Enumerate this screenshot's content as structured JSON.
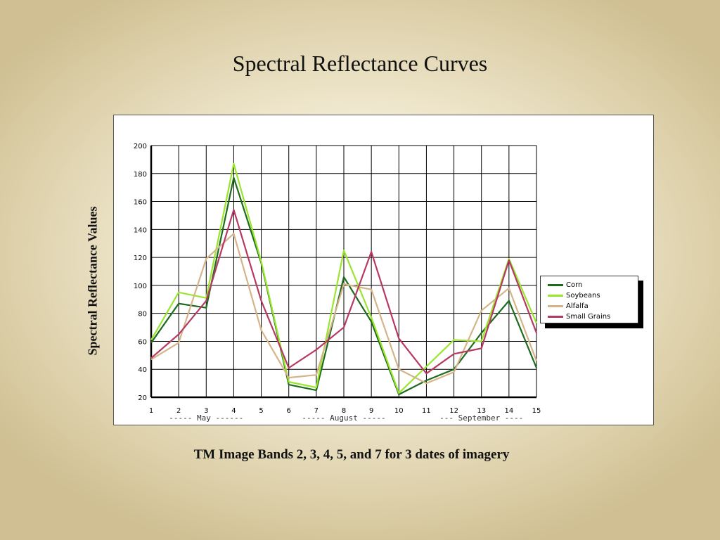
{
  "slide": {
    "title": "Spectral Reflectance Curves",
    "caption": "TM Image Bands 2, 3, 4, 5, and 7 for 3 dates of imagery"
  },
  "chart_data": {
    "type": "line",
    "title": "Spectral Reflectance Curves",
    "ylabel": "Spectral Reflectance Values",
    "xlabel": "",
    "x": [
      1,
      2,
      3,
      4,
      5,
      6,
      7,
      8,
      9,
      10,
      11,
      12,
      13,
      14,
      15
    ],
    "x_ticks": [
      "1",
      "2",
      "3",
      "4",
      "5",
      "6",
      "7",
      "8",
      "9",
      "10",
      "11",
      "12",
      "13",
      "14",
      "15"
    ],
    "y_ticks": [
      "20",
      "40",
      "60",
      "80",
      "100",
      "120",
      "140",
      "160",
      "180",
      "200"
    ],
    "xlim": [
      1,
      15
    ],
    "ylim": [
      20,
      200
    ],
    "grid": true,
    "legend_position": "right",
    "date_groups": [
      {
        "label": "----- May ------"
      },
      {
        "label": "----- August -----"
      },
      {
        "label": "--- September ----"
      }
    ],
    "series": [
      {
        "name": "Corn",
        "color": "#1e6b1e",
        "values": [
          59,
          87,
          84,
          177,
          116,
          29,
          25,
          106,
          74,
          22,
          32,
          40,
          66,
          89,
          41
        ]
      },
      {
        "name": "Soybeans",
        "color": "#9ae62e",
        "values": [
          61,
          95,
          91,
          187,
          117,
          31,
          27,
          125,
          77,
          23,
          42,
          61,
          60,
          119,
          73
        ]
      },
      {
        "name": "Alfalfa",
        "color": "#d6b48a",
        "values": [
          47,
          59,
          119,
          137,
          68,
          34,
          36,
          101,
          97,
          40,
          30,
          38,
          82,
          98,
          46
        ]
      },
      {
        "name": "Small Grains",
        "color": "#b53a62",
        "values": [
          48,
          65,
          89,
          154,
          89,
          41,
          54,
          70,
          124,
          62,
          37,
          51,
          55,
          118,
          66
        ]
      }
    ]
  }
}
